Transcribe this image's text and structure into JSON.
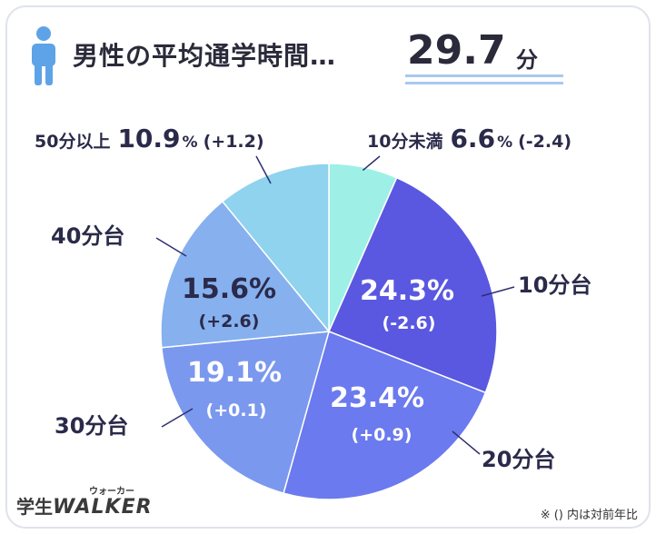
{
  "header": {
    "title": "男性の平均通学時間…",
    "value": "29.7",
    "unit": "分"
  },
  "chart_data": {
    "type": "pie",
    "title": "男性の平均通学時間…29.7分",
    "slices": [
      {
        "label": "10分未満",
        "percent": 6.6,
        "percent_text": "6.6",
        "change": "(-2.4)",
        "color": "#9ef0e6"
      },
      {
        "label": "10分台",
        "percent": 24.3,
        "percent_text": "24.3",
        "change": "(-2.6)",
        "color": "#5a58e0"
      },
      {
        "label": "20分台",
        "percent": 23.4,
        "percent_text": "23.4",
        "change": "(+0.9)",
        "color": "#6b7aee"
      },
      {
        "label": "30分台",
        "percent": 19.1,
        "percent_text": "19.1",
        "change": "(+0.1)",
        "color": "#7b98ef"
      },
      {
        "label": "40分台",
        "percent": 15.6,
        "percent_text": "15.6",
        "change": "(+2.6)",
        "color": "#86b0ee"
      },
      {
        "label": "50分以上",
        "percent": 10.9,
        "percent_text": "10.9",
        "change": "(+1.2)",
        "color": "#8fd3ee"
      }
    ],
    "percent_sign": "%"
  },
  "footer": {
    "logo_a": "学生",
    "logo_b": "WALKER",
    "logo_kana": "ウォーカー",
    "note": "※ () 内は対前年比"
  },
  "colors": {
    "icon": "#5ea3e8",
    "label": "#2e2f6e",
    "underline": "#a9c8ef"
  }
}
